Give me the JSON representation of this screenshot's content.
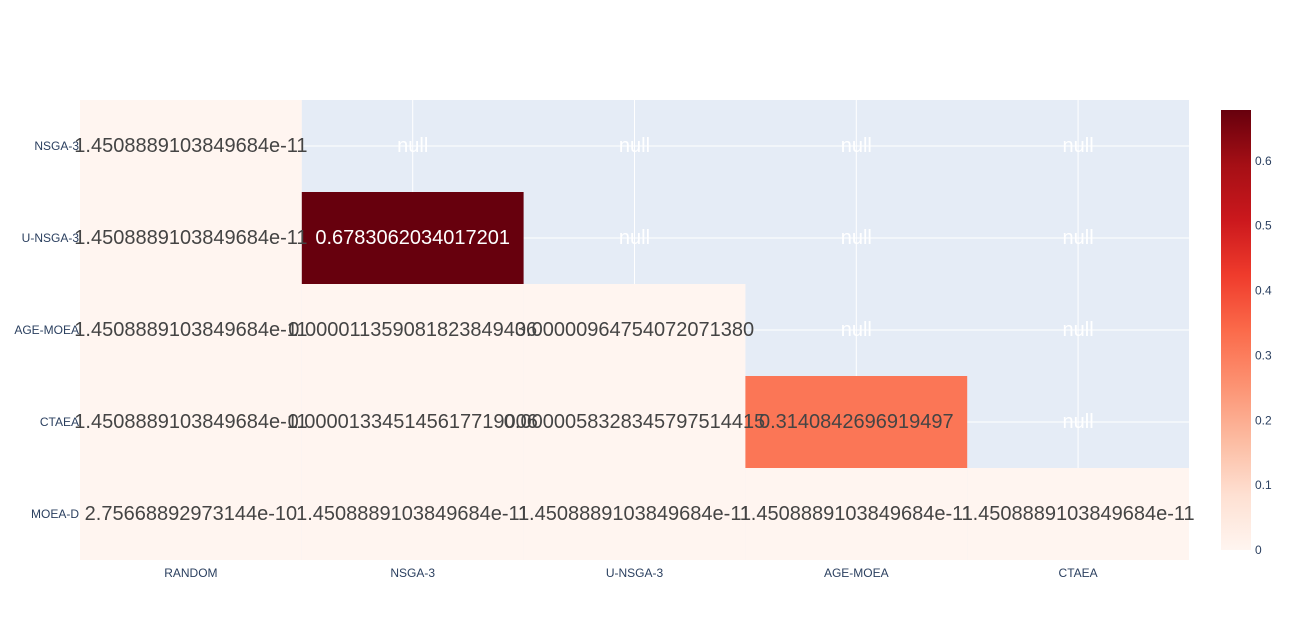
{
  "chart_data": {
    "type": "heatmap",
    "x_categories": [
      "RANDOM",
      "NSGA-3",
      "U-NSGA-3",
      "AGE-MOEA",
      "CTAEA"
    ],
    "y_categories": [
      "NSGA-3",
      "U-NSGA-3",
      "AGE-MOEA",
      "CTAEA",
      "MOEA-D"
    ],
    "z": [
      [
        1.4508889103849684e-11,
        null,
        null,
        null,
        null
      ],
      [
        1.4508889103849684e-11,
        0.6783062034017201,
        null,
        null,
        null
      ],
      [
        1.4508889103849684e-11,
        1.1359081823849436e-05,
        9.6475407207138e-06,
        null,
        null
      ],
      [
        1.4508889103849684e-11,
        1.3345145617719006e-05,
        5.8328345797514415e-06,
        0.3140842696919497,
        null
      ],
      [
        2.75668892973144e-10,
        1.4508889103849684e-11,
        1.4508889103849684e-11,
        1.4508889103849684e-11,
        1.4508889103849684e-11
      ]
    ],
    "cell_text": [
      [
        "1.4508889103849684e-11",
        "null",
        "null",
        "null",
        "null"
      ],
      [
        "1.4508889103849684e-11",
        "0.6783062034017201",
        "null",
        "null",
        "null"
      ],
      [
        "1.4508889103849684e-11",
        "0.000011359081823849436",
        "0.00000964754072071380",
        "null",
        "null"
      ],
      [
        "1.4508889103849684e-11",
        "0.000013345145617719006",
        "0.0000058328345797514415",
        "0.3140842696919497",
        "null"
      ],
      [
        "2.75668892973144e-10",
        "1.4508889103849684e-11",
        "1.4508889103849684e-11",
        "1.4508889103849684e-11",
        "1.4508889103849684e-11"
      ]
    ],
    "colorscale": "Reds",
    "colorbar": {
      "range": [
        0,
        0.6783062034017201
      ],
      "ticks": [
        0,
        0.1,
        0.2,
        0.3,
        0.4,
        0.5,
        0.6
      ],
      "tick_labels": [
        "0",
        "0.1",
        "0.2",
        "0.3",
        "0.4",
        "0.5",
        "0.6"
      ]
    },
    "missing_color": "#e5ecf6",
    "grid": true,
    "title": "",
    "xlabel": "",
    "ylabel": ""
  }
}
